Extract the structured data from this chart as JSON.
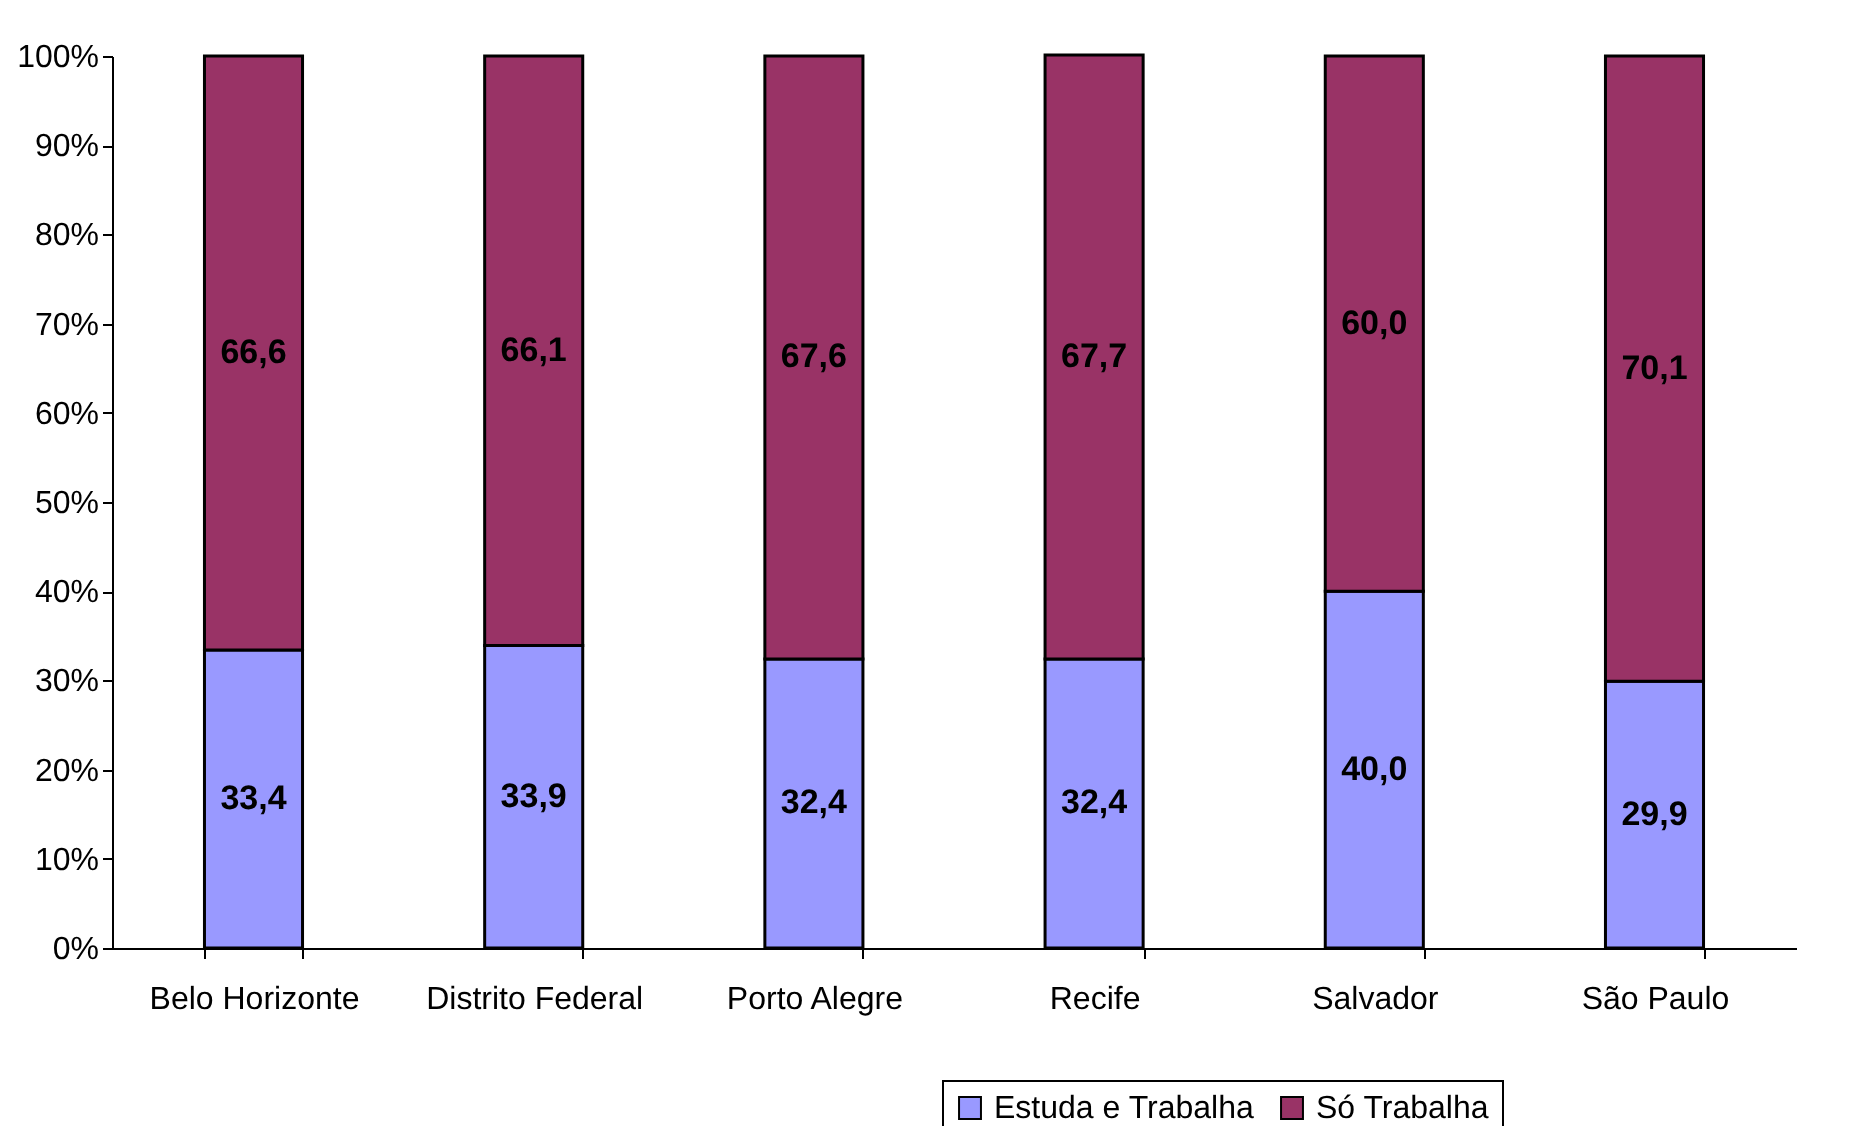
{
  "chart_data": {
    "type": "bar",
    "stacked": true,
    "categories": [
      "Belo Horizonte",
      "Distrito Federal",
      "Porto Alegre",
      "Recife",
      "Salvador",
      "São Paulo"
    ],
    "series": [
      {
        "name": "Estuda e Trabalha",
        "color": "#9999ff",
        "values": [
          33.4,
          33.9,
          32.4,
          32.4,
          40.0,
          29.9
        ],
        "value_labels": [
          "33,4",
          "33,9",
          "32,4",
          "32,4",
          "40,0",
          "29,9"
        ]
      },
      {
        "name": "Só Trabalha",
        "color": "#993366",
        "values": [
          66.6,
          66.1,
          67.6,
          67.7,
          60.0,
          70.1
        ],
        "value_labels": [
          "66,6",
          "66,1",
          "67,6",
          "67,7",
          "60,0",
          "70,1"
        ]
      }
    ],
    "ylim": [
      0,
      100
    ],
    "yticks": [
      {
        "value": 0,
        "label": "0%"
      },
      {
        "value": 10,
        "label": "10%"
      },
      {
        "value": 20,
        "label": "20%"
      },
      {
        "value": 30,
        "label": "30%"
      },
      {
        "value": 40,
        "label": "40%"
      },
      {
        "value": 50,
        "label": "50%"
      },
      {
        "value": 60,
        "label": "60%"
      },
      {
        "value": 70,
        "label": "70%"
      },
      {
        "value": 80,
        "label": "80%"
      },
      {
        "value": 90,
        "label": "90%"
      },
      {
        "value": 100,
        "label": "100%"
      }
    ],
    "grid": false,
    "legend": "bottom right"
  }
}
